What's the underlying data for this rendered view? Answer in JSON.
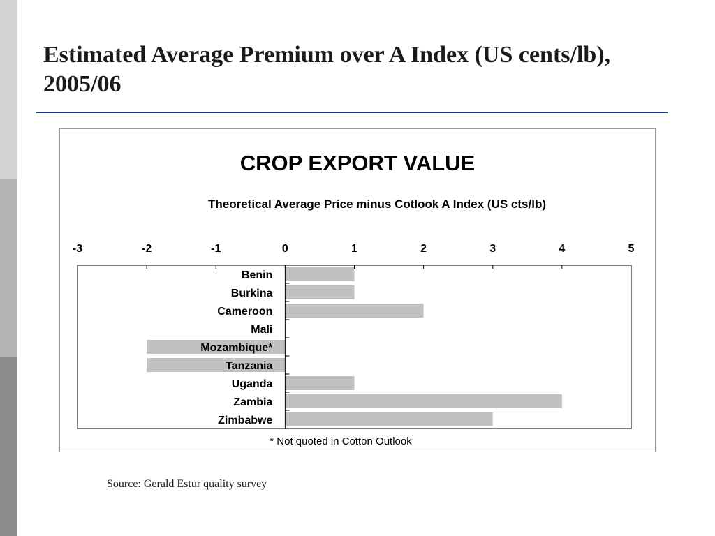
{
  "slide": {
    "title": "Estimated Average Premium over A Index (US cents/lb), 2005/06",
    "source": "Source: Gerald Estur quality survey"
  },
  "colors": {
    "bar": "#c0c0c0",
    "title_rule": "#1f3580"
  },
  "chart_data": {
    "type": "bar",
    "orientation": "horizontal",
    "title": "CROP EXPORT VALUE",
    "subtitle": "Theoretical Average Price minus Cotlook A Index (US cts/lb)",
    "footnote": "* Not quoted in Cotton Outlook",
    "categories": [
      "Benin",
      "Burkina",
      "Cameroon",
      "Mali",
      "Mozambique*",
      "Tanzania",
      "Uganda",
      "Zambia",
      "Zimbabwe"
    ],
    "values": [
      1,
      1,
      2,
      0,
      -2,
      -2,
      1,
      4,
      3
    ],
    "xlim": [
      -3,
      5
    ],
    "xticks": [
      -3,
      -2,
      -1,
      0,
      1,
      2,
      3,
      4,
      5
    ],
    "tick_labels": [
      "-3",
      "-2",
      "-1",
      "0",
      "1",
      "2",
      "3",
      "4",
      "5"
    ],
    "axis_position": "top",
    "grid": false
  }
}
